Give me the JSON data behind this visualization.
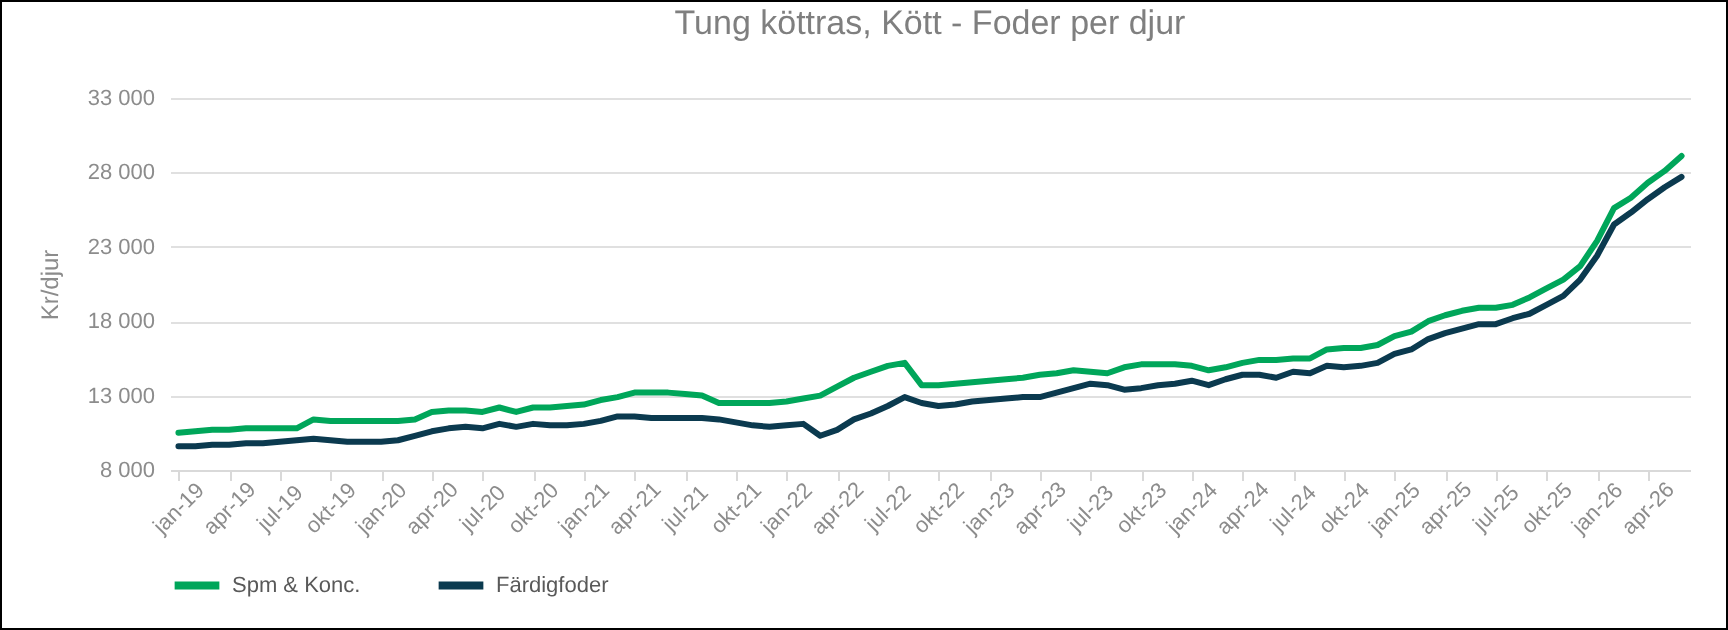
{
  "chart_data": {
    "type": "line",
    "title": "Tung köttras, Kött - Foder per djur",
    "ylabel": "Kr/djur",
    "categories": [
      "jan-19",
      null,
      null,
      "apr-19",
      null,
      null,
      "jul-19",
      null,
      null,
      "okt-19",
      null,
      null,
      "jan-20",
      null,
      null,
      "apr-20",
      null,
      null,
      "jul-20",
      null,
      null,
      "okt-20",
      null,
      null,
      "jan-21",
      null,
      null,
      "apr-21",
      null,
      null,
      "jul-21",
      null,
      null,
      "okt-21",
      null,
      null,
      "jan-22",
      null,
      null,
      "apr-22",
      null,
      null,
      "jul-22",
      null,
      null,
      "okt-22",
      null,
      null,
      "jan-23",
      null,
      null,
      "apr-23",
      null,
      null,
      "jul-23",
      null,
      null,
      "okt-23",
      null,
      null,
      "jan-24",
      null,
      null,
      "apr-24",
      null,
      null,
      "jul-24",
      null,
      null,
      "okt-24",
      null,
      null,
      "jan-25",
      null,
      null,
      "apr-25",
      null,
      null,
      "jul-25",
      null,
      null,
      "okt-25",
      null,
      null,
      "jan-26",
      null,
      null,
      "apr-26",
      null,
      null
    ],
    "series": [
      {
        "name": "Spm & Konc.",
        "color": "#00a65a",
        "values": [
          10500,
          10600,
          10700,
          10700,
          10800,
          10800,
          10800,
          10800,
          11400,
          11300,
          11300,
          11300,
          11300,
          11300,
          11400,
          11900,
          12000,
          12000,
          11900,
          12200,
          11900,
          12200,
          12200,
          12300,
          12400,
          12700,
          12900,
          13200,
          13200,
          13200,
          13100,
          13000,
          12500,
          12500,
          12500,
          12500,
          12600,
          12800,
          13000,
          13600,
          14200,
          14600,
          15000,
          15200,
          13700,
          13700,
          13800,
          13900,
          14000,
          14100,
          14200,
          14400,
          14500,
          14700,
          14600,
          14500,
          14900,
          15100,
          15100,
          15100,
          15000,
          14700,
          14900,
          15200,
          15400,
          15400,
          15500,
          15500,
          16100,
          16200,
          16200,
          16400,
          17000,
          17300,
          18000,
          18400,
          18700,
          18900,
          18900,
          19100,
          19600,
          20200,
          20800,
          21700,
          23400,
          25600,
          26300,
          27300,
          28100,
          29100
        ]
      },
      {
        "name": "Färdigfoder",
        "color": "#0b3a4f",
        "values": [
          9600,
          9600,
          9700,
          9700,
          9800,
          9800,
          9900,
          10000,
          10100,
          10000,
          9900,
          9900,
          9900,
          10000,
          10300,
          10600,
          10800,
          10900,
          10800,
          11100,
          10900,
          11100,
          11000,
          11000,
          11100,
          11300,
          11600,
          11600,
          11500,
          11500,
          11500,
          11500,
          11400,
          11200,
          11000,
          10900,
          11000,
          11100,
          10300,
          10700,
          11400,
          11800,
          12300,
          12900,
          12500,
          12300,
          12400,
          12600,
          12700,
          12800,
          12900,
          12900,
          13200,
          13500,
          13800,
          13700,
          13400,
          13500,
          13700,
          13800,
          14000,
          13700,
          14100,
          14400,
          14400,
          14200,
          14600,
          14500,
          15000,
          14900,
          15000,
          15200,
          15800,
          16100,
          16800,
          17200,
          17500,
          17800,
          17800,
          18200,
          18500,
          19100,
          19700,
          20800,
          22400,
          24500,
          25300,
          26200,
          27000,
          27700
        ]
      }
    ],
    "ylim": [
      8000,
      33000
    ],
    "yticks": [
      {
        "value": 8000,
        "label": "8 000"
      },
      {
        "value": 13000,
        "label": "13 000"
      },
      {
        "value": 18000,
        "label": "18 000"
      },
      {
        "value": 23000,
        "label": "23 000"
      },
      {
        "value": 28000,
        "label": "28 000"
      },
      {
        "value": 33000,
        "label": "33 000"
      }
    ],
    "grid": "y",
    "legend": "bottom",
    "line_style": "solid"
  }
}
